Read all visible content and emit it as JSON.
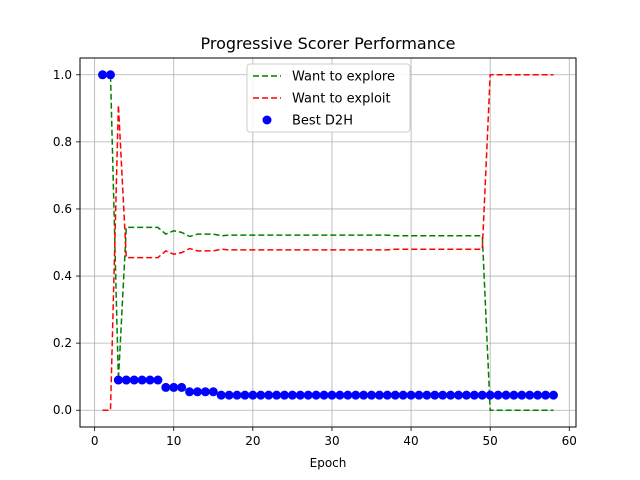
{
  "chart_data": {
    "type": "line",
    "title": "Progressive Scorer Performance",
    "xlabel": "Epoch",
    "ylabel": "",
    "xlim": [
      -1.85,
      60.85
    ],
    "ylim": [
      -0.05,
      1.05
    ],
    "xticks": [
      0,
      10,
      20,
      30,
      40,
      50,
      60
    ],
    "yticks": [
      0.0,
      0.2,
      0.4,
      0.6,
      0.8,
      1.0
    ],
    "ytick_labels": [
      "0.0",
      "0.2",
      "0.4",
      "0.6",
      "0.8",
      "1.0"
    ],
    "grid": true,
    "legend_position": "top-center",
    "series": [
      {
        "name": "Want to explore",
        "kind": "line",
        "style": "dashed",
        "color": "#008000",
        "x": [
          1,
          2,
          3,
          4,
          5,
          6,
          7,
          8,
          9,
          10,
          11,
          12,
          13,
          14,
          15,
          16,
          17,
          18,
          19,
          20,
          21,
          22,
          23,
          24,
          25,
          26,
          27,
          28,
          29,
          30,
          31,
          32,
          33,
          34,
          35,
          36,
          37,
          38,
          39,
          40,
          41,
          42,
          43,
          44,
          45,
          46,
          47,
          48,
          49,
          50,
          51,
          52,
          53,
          54,
          55,
          56,
          57,
          58
        ],
        "y": [
          1.0,
          1.0,
          0.09,
          0.545,
          0.545,
          0.545,
          0.545,
          0.545,
          0.525,
          0.535,
          0.53,
          0.518,
          0.525,
          0.525,
          0.525,
          0.52,
          0.522,
          0.522,
          0.522,
          0.522,
          0.522,
          0.522,
          0.522,
          0.522,
          0.522,
          0.522,
          0.522,
          0.522,
          0.522,
          0.522,
          0.522,
          0.522,
          0.522,
          0.522,
          0.522,
          0.522,
          0.522,
          0.52,
          0.52,
          0.52,
          0.52,
          0.52,
          0.52,
          0.52,
          0.52,
          0.52,
          0.52,
          0.52,
          0.52,
          0.0,
          0.0,
          0.0,
          0.0,
          0.0,
          0.0,
          0.0,
          0.0,
          0.0
        ]
      },
      {
        "name": "Want to exploit",
        "kind": "line",
        "style": "dashed",
        "color": "#ff0000",
        "x": [
          1,
          2,
          3,
          4,
          5,
          6,
          7,
          8,
          9,
          10,
          11,
          12,
          13,
          14,
          15,
          16,
          17,
          18,
          19,
          20,
          21,
          22,
          23,
          24,
          25,
          26,
          27,
          28,
          29,
          30,
          31,
          32,
          33,
          34,
          35,
          36,
          37,
          38,
          39,
          40,
          41,
          42,
          43,
          44,
          45,
          46,
          47,
          48,
          49,
          50,
          51,
          52,
          53,
          54,
          55,
          56,
          57,
          58
        ],
        "y": [
          0.0,
          0.0,
          0.91,
          0.455,
          0.455,
          0.455,
          0.455,
          0.455,
          0.475,
          0.465,
          0.47,
          0.482,
          0.475,
          0.475,
          0.475,
          0.48,
          0.478,
          0.478,
          0.478,
          0.478,
          0.478,
          0.478,
          0.478,
          0.478,
          0.478,
          0.478,
          0.478,
          0.478,
          0.478,
          0.478,
          0.478,
          0.478,
          0.478,
          0.478,
          0.478,
          0.478,
          0.478,
          0.48,
          0.48,
          0.48,
          0.48,
          0.48,
          0.48,
          0.48,
          0.48,
          0.48,
          0.48,
          0.48,
          0.48,
          1.0,
          1.0,
          1.0,
          1.0,
          1.0,
          1.0,
          1.0,
          1.0,
          1.0
        ]
      },
      {
        "name": "Best D2H",
        "kind": "scatter",
        "color": "#0000ff",
        "x": [
          1,
          2,
          3,
          4,
          5,
          6,
          7,
          8,
          9,
          10,
          11,
          12,
          13,
          14,
          15,
          16,
          17,
          18,
          19,
          20,
          21,
          22,
          23,
          24,
          25,
          26,
          27,
          28,
          29,
          30,
          31,
          32,
          33,
          34,
          35,
          36,
          37,
          38,
          39,
          40,
          41,
          42,
          43,
          44,
          45,
          46,
          47,
          48,
          49,
          50,
          51,
          52,
          53,
          54,
          55,
          56,
          57,
          58
        ],
        "y": [
          1.0,
          1.0,
          0.09,
          0.09,
          0.09,
          0.09,
          0.09,
          0.09,
          0.068,
          0.068,
          0.068,
          0.055,
          0.055,
          0.055,
          0.055,
          0.045,
          0.045,
          0.045,
          0.045,
          0.045,
          0.045,
          0.045,
          0.045,
          0.045,
          0.045,
          0.045,
          0.045,
          0.045,
          0.045,
          0.045,
          0.045,
          0.045,
          0.045,
          0.045,
          0.045,
          0.045,
          0.045,
          0.045,
          0.045,
          0.045,
          0.045,
          0.045,
          0.045,
          0.045,
          0.045,
          0.045,
          0.045,
          0.045,
          0.045,
          0.045,
          0.045,
          0.045,
          0.045,
          0.045,
          0.045,
          0.045,
          0.045,
          0.045
        ]
      }
    ]
  }
}
